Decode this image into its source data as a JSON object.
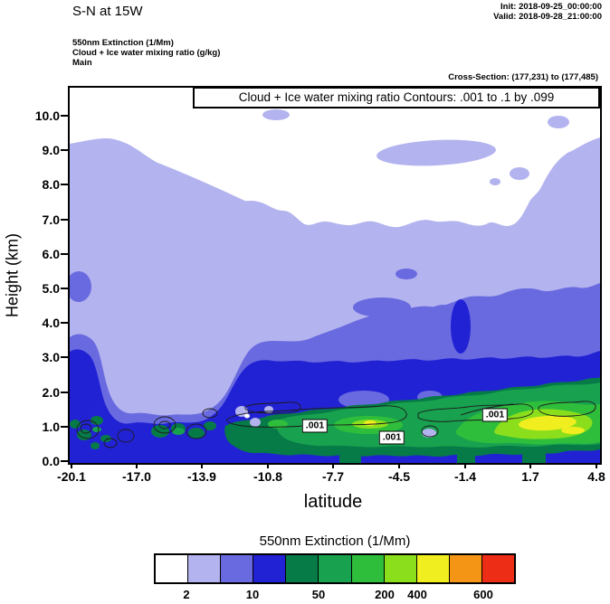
{
  "header": {
    "title": "S-N at 15W",
    "init_line": "Init: 2018-09-25_00:00:00",
    "valid_line": "Valid: 2018-09-28_21:00:00",
    "field_line1": "550nm Extinction  (1/Mm)",
    "field_line2": "Cloud + Ice water mixing ratio  (g/kg)",
    "field_line3": "Main",
    "cross_section": "Cross-Section: (177,231) to (177,485)"
  },
  "plot": {
    "banner": "Cloud + Ice water mixing ratio Contours: .001 to .1 by .099",
    "xlabel": "latitude",
    "ylabel": "Height (km)",
    "yticks": [
      "0.0",
      "1.0",
      "2.0",
      "3.0",
      "4.0",
      "5.0",
      "6.0",
      "7.0",
      "8.0",
      "9.0",
      "10.0"
    ],
    "xticks": [
      "-20.1",
      "-17.0",
      "-13.9",
      "-10.8",
      "-7.7",
      "-4.5",
      "-1.4",
      "1.7",
      "4.8"
    ],
    "contour_labels": [
      ".001",
      ".001",
      ".001"
    ]
  },
  "colorbar": {
    "title": "550nm Extinction  (1/Mm)",
    "ticks": [
      "2",
      "10",
      "50",
      "200",
      "400",
      "600"
    ],
    "colors": [
      "#ffffff",
      "#b3b3ef",
      "#6a6ae0",
      "#2222d5",
      "#067a47",
      "#18a14e",
      "#2fbe3c",
      "#8ade1c",
      "#f0ee1f",
      "#f59516",
      "#ed2d16"
    ]
  },
  "chart_data": {
    "type": "heatmap",
    "title": "S-N at 15W",
    "xlabel": "latitude",
    "ylabel": "Height (km)",
    "xlim": [
      -20.1,
      4.8
    ],
    "ylim": [
      0.0,
      10.5
    ],
    "x": [
      -20.1,
      -17.0,
      -13.9,
      -10.8,
      -7.7,
      -4.5,
      -1.4,
      1.7,
      4.8
    ],
    "heights_km": [
      0.5,
      1.0,
      1.5,
      2.0,
      3.0,
      4.0,
      5.0,
      6.0,
      7.0,
      8.0,
      9.0,
      10.0
    ],
    "extinction_1_per_Mm": [
      [
        80,
        150,
        60,
        120,
        250,
        220,
        200,
        300,
        250
      ],
      [
        120,
        300,
        80,
        280,
        380,
        300,
        350,
        550,
        450
      ],
      [
        100,
        250,
        60,
        150,
        300,
        250,
        280,
        450,
        380
      ],
      [
        60,
        120,
        40,
        80,
        180,
        200,
        180,
        250,
        220
      ],
      [
        60,
        30,
        30,
        60,
        90,
        90,
        90,
        100,
        80
      ],
      [
        30,
        8,
        8,
        25,
        60,
        60,
        60,
        60,
        40
      ],
      [
        25,
        8,
        8,
        8,
        25,
        30,
        30,
        30,
        25
      ],
      [
        8,
        8,
        8,
        15,
        8,
        8,
        15,
        20,
        15
      ],
      [
        5,
        8,
        8,
        8,
        5,
        5,
        8,
        8,
        8
      ],
      [
        5,
        5,
        8,
        5,
        3,
        1,
        5,
        3,
        5
      ],
      [
        5,
        5,
        5,
        3,
        1,
        1,
        3,
        5,
        3
      ],
      [
        5,
        5,
        3,
        1,
        1,
        1,
        1,
        3,
        3
      ]
    ],
    "fill_levels": [
      2,
      5,
      10,
      25,
      50,
      100,
      200,
      400,
      500,
      600
    ],
    "fill_colors": [
      "#ffffff",
      "#b3b3ef",
      "#6a6ae0",
      "#2222d5",
      "#067a47",
      "#18a14e",
      "#2fbe3c",
      "#8ade1c",
      "#f0ee1f",
      "#f59516",
      "#ed2d16"
    ],
    "colorbar_ticks": [
      2,
      10,
      50,
      200,
      400,
      600
    ],
    "overlay_contours": {
      "field": "Cloud + Ice water mixing ratio (g/kg)",
      "levels": [
        0.001,
        0.1
      ],
      "interval_note": ".001 to .1 by .099",
      "label": ".001",
      "note": "black contour loops outline cloud regions near 0.5-2 km"
    },
    "grid": false,
    "legend_position": "bottom colorbar"
  }
}
